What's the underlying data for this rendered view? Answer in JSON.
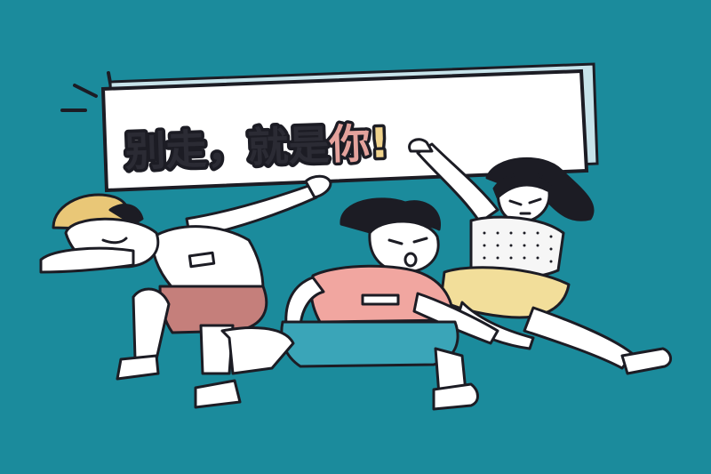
{
  "banner": {
    "dark_text": "别走，就是",
    "accent_text": "你",
    "exclaim": "!"
  },
  "colors": {
    "background": "#1b8b9c",
    "banner_fill": "#ffffff",
    "banner_frame": "#1c1c24",
    "banner_shadow": "#c7e3ea",
    "text_dark": "#2b2b34",
    "text_accent": "#e4a29c",
    "exclaim": "#f0d38c",
    "hat": "#e9c777",
    "pink_shorts": "#c57f7b",
    "salmon_shirt": "#f1a6a0",
    "teal_shorts": "#3aa5b8",
    "yellow_skirt": "#f2de9a",
    "skin": "#ffffff",
    "outline": "#1c1c24"
  },
  "figures": [
    {
      "name": "boy-with-cap-dabbing"
    },
    {
      "name": "boy-in-salmon-shirt-center"
    },
    {
      "name": "girl-in-dotted-top"
    }
  ]
}
